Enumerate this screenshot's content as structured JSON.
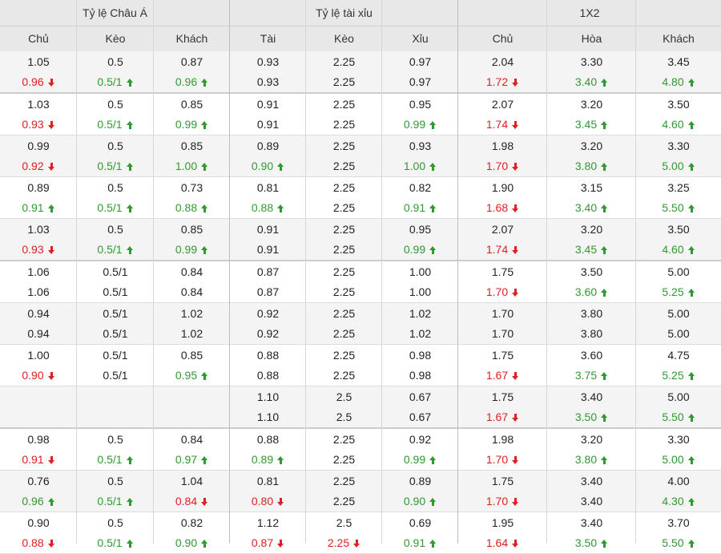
{
  "header": {
    "groups": [
      "Tỷ lệ Châu Á",
      "Tỷ lệ tài xỉu",
      "1X2"
    ],
    "columns": [
      "Chủ",
      "Kèo",
      "Khách",
      "Tài",
      "Kèo",
      "Xỉu",
      "Chủ",
      "Hòa",
      "Khách"
    ]
  },
  "rows": [
    {
      "cells": [
        [
          {
            "v": "1.05",
            "d": ""
          },
          {
            "v": "0.96",
            "d": "down"
          }
        ],
        [
          {
            "v": "0.5",
            "d": ""
          },
          {
            "v": "0.5/1",
            "d": "up"
          }
        ],
        [
          {
            "v": "0.87",
            "d": ""
          },
          {
            "v": "0.96",
            "d": "up"
          }
        ],
        [
          {
            "v": "0.93",
            "d": ""
          },
          {
            "v": "0.93",
            "d": ""
          }
        ],
        [
          {
            "v": "2.25",
            "d": ""
          },
          {
            "v": "2.25",
            "d": ""
          }
        ],
        [
          {
            "v": "0.97",
            "d": ""
          },
          {
            "v": "0.97",
            "d": ""
          }
        ],
        [
          {
            "v": "2.04",
            "d": ""
          },
          {
            "v": "1.72",
            "d": "down"
          }
        ],
        [
          {
            "v": "3.30",
            "d": ""
          },
          {
            "v": "3.40",
            "d": "up"
          }
        ],
        [
          {
            "v": "3.45",
            "d": ""
          },
          {
            "v": "4.80",
            "d": "up"
          }
        ]
      ]
    },
    {
      "cells": [
        [
          {
            "v": "1.03",
            "d": ""
          },
          {
            "v": "0.93",
            "d": "down"
          }
        ],
        [
          {
            "v": "0.5",
            "d": ""
          },
          {
            "v": "0.5/1",
            "d": "up"
          }
        ],
        [
          {
            "v": "0.85",
            "d": ""
          },
          {
            "v": "0.99",
            "d": "up"
          }
        ],
        [
          {
            "v": "0.91",
            "d": ""
          },
          {
            "v": "0.91",
            "d": ""
          }
        ],
        [
          {
            "v": "2.25",
            "d": ""
          },
          {
            "v": "2.25",
            "d": ""
          }
        ],
        [
          {
            "v": "0.95",
            "d": ""
          },
          {
            "v": "0.99",
            "d": "up"
          }
        ],
        [
          {
            "v": "2.07",
            "d": ""
          },
          {
            "v": "1.74",
            "d": "down"
          }
        ],
        [
          {
            "v": "3.20",
            "d": ""
          },
          {
            "v": "3.45",
            "d": "up"
          }
        ],
        [
          {
            "v": "3.50",
            "d": ""
          },
          {
            "v": "4.60",
            "d": "up"
          }
        ]
      ]
    },
    {
      "cells": [
        [
          {
            "v": "0.99",
            "d": ""
          },
          {
            "v": "0.92",
            "d": "down"
          }
        ],
        [
          {
            "v": "0.5",
            "d": ""
          },
          {
            "v": "0.5/1",
            "d": "up"
          }
        ],
        [
          {
            "v": "0.85",
            "d": ""
          },
          {
            "v": "1.00",
            "d": "up"
          }
        ],
        [
          {
            "v": "0.89",
            "d": ""
          },
          {
            "v": "0.90",
            "d": "up"
          }
        ],
        [
          {
            "v": "2.25",
            "d": ""
          },
          {
            "v": "2.25",
            "d": ""
          }
        ],
        [
          {
            "v": "0.93",
            "d": ""
          },
          {
            "v": "1.00",
            "d": "up"
          }
        ],
        [
          {
            "v": "1.98",
            "d": ""
          },
          {
            "v": "1.70",
            "d": "down"
          }
        ],
        [
          {
            "v": "3.20",
            "d": ""
          },
          {
            "v": "3.80",
            "d": "up"
          }
        ],
        [
          {
            "v": "3.30",
            "d": ""
          },
          {
            "v": "5.00",
            "d": "up"
          }
        ]
      ]
    },
    {
      "cells": [
        [
          {
            "v": "0.89",
            "d": ""
          },
          {
            "v": "0.91",
            "d": "up"
          }
        ],
        [
          {
            "v": "0.5",
            "d": ""
          },
          {
            "v": "0.5/1",
            "d": "up"
          }
        ],
        [
          {
            "v": "0.73",
            "d": ""
          },
          {
            "v": "0.88",
            "d": "up"
          }
        ],
        [
          {
            "v": "0.81",
            "d": ""
          },
          {
            "v": "0.88",
            "d": "up"
          }
        ],
        [
          {
            "v": "2.25",
            "d": ""
          },
          {
            "v": "2.25",
            "d": ""
          }
        ],
        [
          {
            "v": "0.82",
            "d": ""
          },
          {
            "v": "0.91",
            "d": "up"
          }
        ],
        [
          {
            "v": "1.90",
            "d": ""
          },
          {
            "v": "1.68",
            "d": "down"
          }
        ],
        [
          {
            "v": "3.15",
            "d": ""
          },
          {
            "v": "3.40",
            "d": "up"
          }
        ],
        [
          {
            "v": "3.25",
            "d": ""
          },
          {
            "v": "5.50",
            "d": "up"
          }
        ]
      ]
    },
    {
      "cells": [
        [
          {
            "v": "1.03",
            "d": ""
          },
          {
            "v": "0.93",
            "d": "down"
          }
        ],
        [
          {
            "v": "0.5",
            "d": ""
          },
          {
            "v": "0.5/1",
            "d": "up"
          }
        ],
        [
          {
            "v": "0.85",
            "d": ""
          },
          {
            "v": "0.99",
            "d": "up"
          }
        ],
        [
          {
            "v": "0.91",
            "d": ""
          },
          {
            "v": "0.91",
            "d": ""
          }
        ],
        [
          {
            "v": "2.25",
            "d": ""
          },
          {
            "v": "2.25",
            "d": ""
          }
        ],
        [
          {
            "v": "0.95",
            "d": ""
          },
          {
            "v": "0.99",
            "d": "up"
          }
        ],
        [
          {
            "v": "2.07",
            "d": ""
          },
          {
            "v": "1.74",
            "d": "down"
          }
        ],
        [
          {
            "v": "3.20",
            "d": ""
          },
          {
            "v": "3.45",
            "d": "up"
          }
        ],
        [
          {
            "v": "3.50",
            "d": ""
          },
          {
            "v": "4.60",
            "d": "up"
          }
        ]
      ]
    },
    {
      "cells": [
        [
          {
            "v": "1.06",
            "d": ""
          },
          {
            "v": "1.06",
            "d": ""
          }
        ],
        [
          {
            "v": "0.5/1",
            "d": ""
          },
          {
            "v": "0.5/1",
            "d": ""
          }
        ],
        [
          {
            "v": "0.84",
            "d": ""
          },
          {
            "v": "0.84",
            "d": ""
          }
        ],
        [
          {
            "v": "0.87",
            "d": ""
          },
          {
            "v": "0.87",
            "d": ""
          }
        ],
        [
          {
            "v": "2.25",
            "d": ""
          },
          {
            "v": "2.25",
            "d": ""
          }
        ],
        [
          {
            "v": "1.00",
            "d": ""
          },
          {
            "v": "1.00",
            "d": ""
          }
        ],
        [
          {
            "v": "1.75",
            "d": ""
          },
          {
            "v": "1.70",
            "d": "down"
          }
        ],
        [
          {
            "v": "3.50",
            "d": ""
          },
          {
            "v": "3.60",
            "d": "up"
          }
        ],
        [
          {
            "v": "5.00",
            "d": ""
          },
          {
            "v": "5.25",
            "d": "up"
          }
        ]
      ]
    },
    {
      "cells": [
        [
          {
            "v": "0.94",
            "d": ""
          },
          {
            "v": "0.94",
            "d": ""
          }
        ],
        [
          {
            "v": "0.5/1",
            "d": ""
          },
          {
            "v": "0.5/1",
            "d": ""
          }
        ],
        [
          {
            "v": "1.02",
            "d": ""
          },
          {
            "v": "1.02",
            "d": ""
          }
        ],
        [
          {
            "v": "0.92",
            "d": ""
          },
          {
            "v": "0.92",
            "d": ""
          }
        ],
        [
          {
            "v": "2.25",
            "d": ""
          },
          {
            "v": "2.25",
            "d": ""
          }
        ],
        [
          {
            "v": "1.02",
            "d": ""
          },
          {
            "v": "1.02",
            "d": ""
          }
        ],
        [
          {
            "v": "1.70",
            "d": ""
          },
          {
            "v": "1.70",
            "d": ""
          }
        ],
        [
          {
            "v": "3.80",
            "d": ""
          },
          {
            "v": "3.80",
            "d": ""
          }
        ],
        [
          {
            "v": "5.00",
            "d": ""
          },
          {
            "v": "5.00",
            "d": ""
          }
        ]
      ]
    },
    {
      "cells": [
        [
          {
            "v": "1.00",
            "d": ""
          },
          {
            "v": "0.90",
            "d": "down"
          }
        ],
        [
          {
            "v": "0.5/1",
            "d": ""
          },
          {
            "v": "0.5/1",
            "d": ""
          }
        ],
        [
          {
            "v": "0.85",
            "d": ""
          },
          {
            "v": "0.95",
            "d": "up"
          }
        ],
        [
          {
            "v": "0.88",
            "d": ""
          },
          {
            "v": "0.88",
            "d": ""
          }
        ],
        [
          {
            "v": "2.25",
            "d": ""
          },
          {
            "v": "2.25",
            "d": ""
          }
        ],
        [
          {
            "v": "0.98",
            "d": ""
          },
          {
            "v": "0.98",
            "d": ""
          }
        ],
        [
          {
            "v": "1.75",
            "d": ""
          },
          {
            "v": "1.67",
            "d": "down"
          }
        ],
        [
          {
            "v": "3.60",
            "d": ""
          },
          {
            "v": "3.75",
            "d": "up"
          }
        ],
        [
          {
            "v": "4.75",
            "d": ""
          },
          {
            "v": "5.25",
            "d": "up"
          }
        ]
      ]
    },
    {
      "cells": [
        [
          {
            "v": "",
            "d": ""
          },
          {
            "v": "",
            "d": ""
          }
        ],
        [
          {
            "v": "",
            "d": ""
          },
          {
            "v": "",
            "d": ""
          }
        ],
        [
          {
            "v": "",
            "d": ""
          },
          {
            "v": "",
            "d": ""
          }
        ],
        [
          {
            "v": "1.10",
            "d": ""
          },
          {
            "v": "1.10",
            "d": ""
          }
        ],
        [
          {
            "v": "2.5",
            "d": ""
          },
          {
            "v": "2.5",
            "d": ""
          }
        ],
        [
          {
            "v": "0.67",
            "d": ""
          },
          {
            "v": "0.67",
            "d": ""
          }
        ],
        [
          {
            "v": "1.75",
            "d": ""
          },
          {
            "v": "1.67",
            "d": "down"
          }
        ],
        [
          {
            "v": "3.40",
            "d": ""
          },
          {
            "v": "3.50",
            "d": "up"
          }
        ],
        [
          {
            "v": "5.00",
            "d": ""
          },
          {
            "v": "5.50",
            "d": "up"
          }
        ]
      ]
    },
    {
      "cells": [
        [
          {
            "v": "0.98",
            "d": ""
          },
          {
            "v": "0.91",
            "d": "down"
          }
        ],
        [
          {
            "v": "0.5",
            "d": ""
          },
          {
            "v": "0.5/1",
            "d": "up"
          }
        ],
        [
          {
            "v": "0.84",
            "d": ""
          },
          {
            "v": "0.97",
            "d": "up"
          }
        ],
        [
          {
            "v": "0.88",
            "d": ""
          },
          {
            "v": "0.89",
            "d": "up"
          }
        ],
        [
          {
            "v": "2.25",
            "d": ""
          },
          {
            "v": "2.25",
            "d": ""
          }
        ],
        [
          {
            "v": "0.92",
            "d": ""
          },
          {
            "v": "0.99",
            "d": "up"
          }
        ],
        [
          {
            "v": "1.98",
            "d": ""
          },
          {
            "v": "1.70",
            "d": "down"
          }
        ],
        [
          {
            "v": "3.20",
            "d": ""
          },
          {
            "v": "3.80",
            "d": "up"
          }
        ],
        [
          {
            "v": "3.30",
            "d": ""
          },
          {
            "v": "5.00",
            "d": "up"
          }
        ]
      ]
    },
    {
      "cells": [
        [
          {
            "v": "0.76",
            "d": ""
          },
          {
            "v": "0.96",
            "d": "up"
          }
        ],
        [
          {
            "v": "0.5",
            "d": ""
          },
          {
            "v": "0.5/1",
            "d": "up"
          }
        ],
        [
          {
            "v": "1.04",
            "d": ""
          },
          {
            "v": "0.84",
            "d": "down"
          }
        ],
        [
          {
            "v": "0.81",
            "d": ""
          },
          {
            "v": "0.80",
            "d": "down"
          }
        ],
        [
          {
            "v": "2.25",
            "d": ""
          },
          {
            "v": "2.25",
            "d": ""
          }
        ],
        [
          {
            "v": "0.89",
            "d": ""
          },
          {
            "v": "0.90",
            "d": "up"
          }
        ],
        [
          {
            "v": "1.75",
            "d": ""
          },
          {
            "v": "1.70",
            "d": "down"
          }
        ],
        [
          {
            "v": "3.40",
            "d": ""
          },
          {
            "v": "3.40",
            "d": ""
          }
        ],
        [
          {
            "v": "4.00",
            "d": ""
          },
          {
            "v": "4.30",
            "d": "up"
          }
        ]
      ]
    },
    {
      "cells": [
        [
          {
            "v": "0.90",
            "d": ""
          },
          {
            "v": "0.88",
            "d": "down"
          }
        ],
        [
          {
            "v": "0.5",
            "d": ""
          },
          {
            "v": "0.5/1",
            "d": "up"
          }
        ],
        [
          {
            "v": "0.82",
            "d": ""
          },
          {
            "v": "0.90",
            "d": "up"
          }
        ],
        [
          {
            "v": "1.12",
            "d": ""
          },
          {
            "v": "0.87",
            "d": "down"
          }
        ],
        [
          {
            "v": "2.5",
            "d": ""
          },
          {
            "v": "2.25",
            "d": "down"
          }
        ],
        [
          {
            "v": "0.69",
            "d": ""
          },
          {
            "v": "0.91",
            "d": "up"
          }
        ],
        [
          {
            "v": "1.95",
            "d": ""
          },
          {
            "v": "1.64",
            "d": "down"
          }
        ],
        [
          {
            "v": "3.40",
            "d": ""
          },
          {
            "v": "3.50",
            "d": "up"
          }
        ],
        [
          {
            "v": "3.70",
            "d": ""
          },
          {
            "v": "5.50",
            "d": "up"
          }
        ]
      ]
    }
  ]
}
